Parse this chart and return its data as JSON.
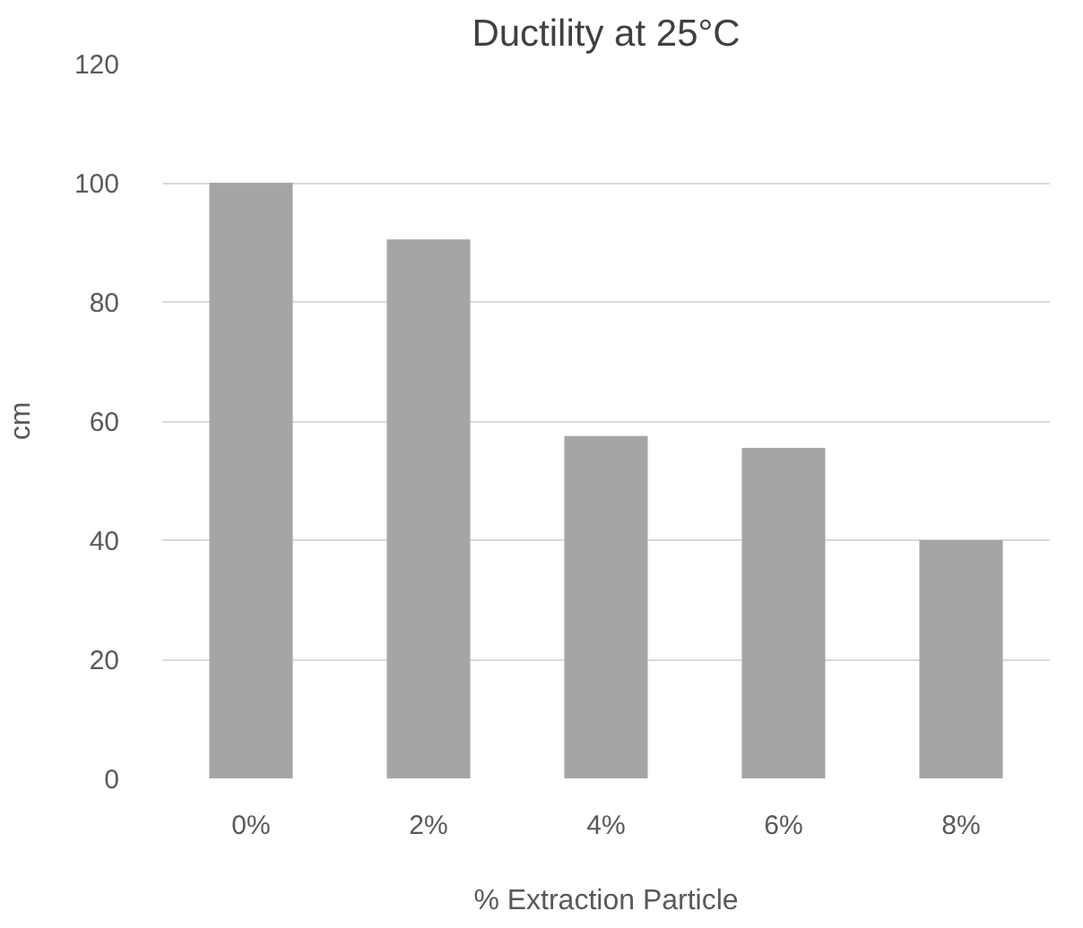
{
  "chart_data": {
    "type": "bar",
    "title": "Ductility at 25°C",
    "xlabel": "% Extraction Particle",
    "ylabel": "cm",
    "categories": [
      "0%",
      "2%",
      "4%",
      "6%",
      "8%"
    ],
    "values": [
      100,
      90.5,
      57.5,
      55.5,
      40
    ],
    "color": "#a5a5a5",
    "ylim": [
      0,
      120
    ],
    "yticks": [
      0,
      20,
      40,
      60,
      80,
      100,
      120
    ],
    "grid": "y"
  }
}
